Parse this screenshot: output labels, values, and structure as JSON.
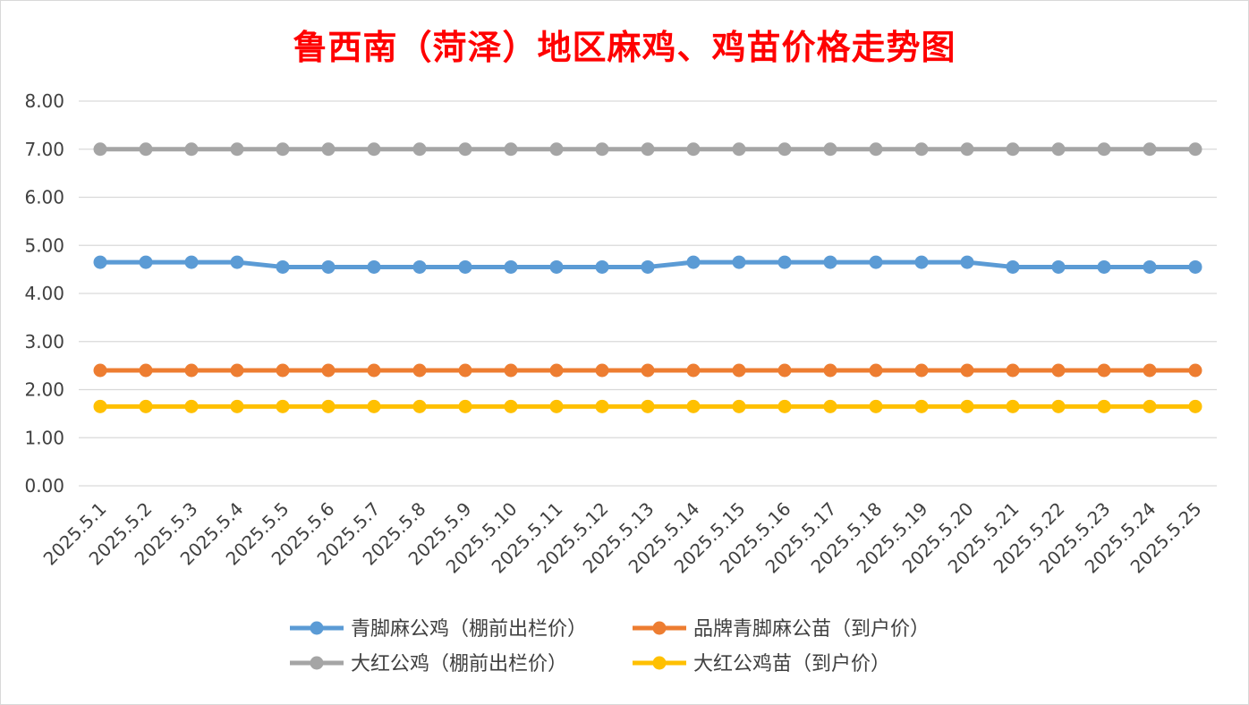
{
  "chart_data": {
    "type": "line",
    "title": "鲁西南（菏泽）地区麻鸡、鸡苗价格走势图",
    "xlabel": "",
    "ylabel": "",
    "ylim": [
      0,
      8
    ],
    "yticks": [
      "0.00",
      "1.00",
      "2.00",
      "3.00",
      "4.00",
      "5.00",
      "6.00",
      "7.00",
      "8.00"
    ],
    "grid": true,
    "legend_position": "bottom",
    "categories": [
      "2025.5.1",
      "2025.5.2",
      "2025.5.3",
      "2025.5.4",
      "2025.5.5",
      "2025.5.6",
      "2025.5.7",
      "2025.5.8",
      "2025.5.9",
      "2025.5.10",
      "2025.5.11",
      "2025.5.12",
      "2025.5.13",
      "2025.5.14",
      "2025.5.15",
      "2025.5.16",
      "2025.5.17",
      "2025.5.18",
      "2025.5.19",
      "2025.5.20",
      "2025.5.21",
      "2025.5.22",
      "2025.5.23",
      "2025.5.24",
      "2025.5.25"
    ],
    "series": [
      {
        "name": "青脚麻公鸡（棚前出栏价）",
        "color": "#5b9bd5",
        "values": [
          4.65,
          4.65,
          4.65,
          4.65,
          4.55,
          4.55,
          4.55,
          4.55,
          4.55,
          4.55,
          4.55,
          4.55,
          4.55,
          4.65,
          4.65,
          4.65,
          4.65,
          4.65,
          4.65,
          4.65,
          4.55,
          4.55,
          4.55,
          4.55,
          4.55
        ]
      },
      {
        "name": "品牌青脚麻公苗（到户价）",
        "color": "#ed7d31",
        "values": [
          2.4,
          2.4,
          2.4,
          2.4,
          2.4,
          2.4,
          2.4,
          2.4,
          2.4,
          2.4,
          2.4,
          2.4,
          2.4,
          2.4,
          2.4,
          2.4,
          2.4,
          2.4,
          2.4,
          2.4,
          2.4,
          2.4,
          2.4,
          2.4,
          2.4
        ]
      },
      {
        "name": "大红公鸡（棚前出栏价）",
        "color": "#a5a5a5",
        "values": [
          7,
          7,
          7,
          7,
          7,
          7,
          7,
          7,
          7,
          7,
          7,
          7,
          7,
          7,
          7,
          7,
          7,
          7,
          7,
          7,
          7,
          7,
          7,
          7,
          7
        ]
      },
      {
        "name": "大红公鸡苗（到户价）",
        "color": "#ffc000",
        "values": [
          1.65,
          1.65,
          1.65,
          1.65,
          1.65,
          1.65,
          1.65,
          1.65,
          1.65,
          1.65,
          1.65,
          1.65,
          1.65,
          1.65,
          1.65,
          1.65,
          1.65,
          1.65,
          1.65,
          1.65,
          1.65,
          1.65,
          1.65,
          1.65,
          1.65
        ]
      }
    ]
  }
}
